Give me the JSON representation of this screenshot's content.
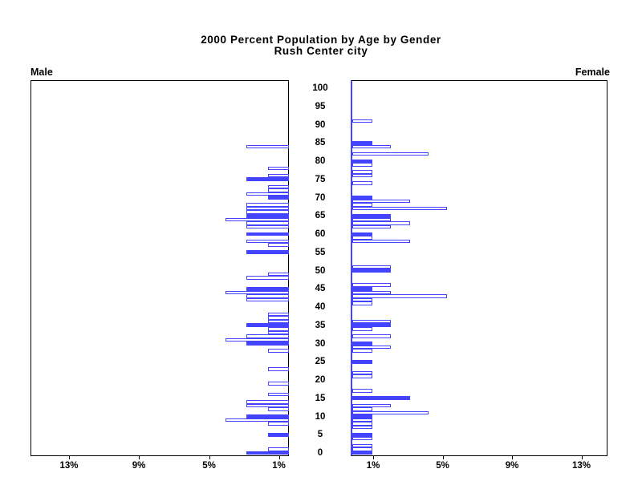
{
  "title": {
    "line1": "2000 Percent Population by Age by Gender",
    "line2": "Rush Center city"
  },
  "panel_labels": {
    "left": "Male",
    "right": "Female"
  },
  "chart_data": {
    "type": "bar",
    "subtype": "population-pyramid",
    "title": "2000 Percent Population by Age by Gender",
    "subtitle": "Rush Center city",
    "orientation": "horizontal, single-year-of-age bars; ages divisible by 5 drawn as solid filled bars, other ages as outlined bars",
    "legend_position": "none",
    "grid": "off",
    "colors": {
      "bar_blue": "#4444ff",
      "axis_black": "#000000",
      "background": "#ffffff"
    },
    "age_axis": {
      "min": 0,
      "max": 100,
      "tick_step": 5,
      "tick_labels": [
        "0",
        "5",
        "10",
        "15",
        "20",
        "25",
        "30",
        "35",
        "40",
        "45",
        "50",
        "55",
        "60",
        "65",
        "70",
        "75",
        "80",
        "85",
        "90",
        "95",
        "100"
      ]
    },
    "pct_axis": {
      "left_tick_labels": [
        "13%",
        "9%",
        "5%",
        "1%"
      ],
      "right_tick_labels": [
        "1%",
        "5%",
        "9%",
        "13%"
      ],
      "approx_range_pct": [
        0,
        15
      ]
    },
    "pct_per_person": {
      "male": 1.21,
      "female": 1.09
    },
    "male": [
      {
        "age": 84,
        "persons": 2,
        "pct": 2.42,
        "filled": false
      },
      {
        "age": 78,
        "persons": 1,
        "pct": 1.21,
        "filled": false
      },
      {
        "age": 76,
        "persons": 1,
        "pct": 1.21,
        "filled": false
      },
      {
        "age": 75,
        "persons": 2,
        "pct": 2.42,
        "filled": true
      },
      {
        "age": 73,
        "persons": 1,
        "pct": 1.21,
        "filled": false
      },
      {
        "age": 72,
        "persons": 1,
        "pct": 1.21,
        "filled": false
      },
      {
        "age": 71,
        "persons": 2,
        "pct": 2.42,
        "filled": false
      },
      {
        "age": 70,
        "persons": 1,
        "pct": 1.21,
        "filled": true
      },
      {
        "age": 68,
        "persons": 2,
        "pct": 2.42,
        "filled": false
      },
      {
        "age": 67,
        "persons": 2,
        "pct": 2.42,
        "filled": false
      },
      {
        "age": 66,
        "persons": 2,
        "pct": 2.42,
        "filled": false
      },
      {
        "age": 65,
        "persons": 2,
        "pct": 2.42,
        "filled": true
      },
      {
        "age": 64,
        "persons": 3,
        "pct": 3.63,
        "filled": false
      },
      {
        "age": 63,
        "persons": 2,
        "pct": 2.42,
        "filled": false
      },
      {
        "age": 62,
        "persons": 2,
        "pct": 2.42,
        "filled": false
      },
      {
        "age": 60,
        "persons": 2,
        "pct": 2.42,
        "filled": true
      },
      {
        "age": 58,
        "persons": 2,
        "pct": 2.42,
        "filled": false
      },
      {
        "age": 57,
        "persons": 1,
        "pct": 1.21,
        "filled": false
      },
      {
        "age": 55,
        "persons": 2,
        "pct": 2.42,
        "filled": true
      },
      {
        "age": 49,
        "persons": 1,
        "pct": 1.21,
        "filled": false
      },
      {
        "age": 48,
        "persons": 2,
        "pct": 2.42,
        "filled": false
      },
      {
        "age": 45,
        "persons": 2,
        "pct": 2.42,
        "filled": true
      },
      {
        "age": 44,
        "persons": 3,
        "pct": 3.63,
        "filled": false
      },
      {
        "age": 43,
        "persons": 2,
        "pct": 2.42,
        "filled": false
      },
      {
        "age": 42,
        "persons": 2,
        "pct": 2.42,
        "filled": false
      },
      {
        "age": 38,
        "persons": 1,
        "pct": 1.21,
        "filled": false
      },
      {
        "age": 37,
        "persons": 1,
        "pct": 1.21,
        "filled": false
      },
      {
        "age": 36,
        "persons": 1,
        "pct": 1.21,
        "filled": false
      },
      {
        "age": 35,
        "persons": 2,
        "pct": 2.42,
        "filled": true
      },
      {
        "age": 34,
        "persons": 1,
        "pct": 1.21,
        "filled": false
      },
      {
        "age": 33,
        "persons": 1,
        "pct": 1.21,
        "filled": false
      },
      {
        "age": 32,
        "persons": 2,
        "pct": 2.42,
        "filled": false
      },
      {
        "age": 31,
        "persons": 3,
        "pct": 3.63,
        "filled": false
      },
      {
        "age": 30,
        "persons": 2,
        "pct": 2.42,
        "filled": true
      },
      {
        "age": 28,
        "persons": 1,
        "pct": 1.21,
        "filled": false
      },
      {
        "age": 23,
        "persons": 1,
        "pct": 1.21,
        "filled": false
      },
      {
        "age": 19,
        "persons": 1,
        "pct": 1.21,
        "filled": false
      },
      {
        "age": 16,
        "persons": 1,
        "pct": 1.21,
        "filled": false
      },
      {
        "age": 14,
        "persons": 2,
        "pct": 2.42,
        "filled": false
      },
      {
        "age": 13,
        "persons": 2,
        "pct": 2.42,
        "filled": false
      },
      {
        "age": 12,
        "persons": 1,
        "pct": 1.21,
        "filled": false
      },
      {
        "age": 10,
        "persons": 2,
        "pct": 2.42,
        "filled": true
      },
      {
        "age": 9,
        "persons": 3,
        "pct": 3.63,
        "filled": false
      },
      {
        "age": 8,
        "persons": 1,
        "pct": 1.21,
        "filled": false
      },
      {
        "age": 5,
        "persons": 1,
        "pct": 1.21,
        "filled": true
      },
      {
        "age": 1,
        "persons": 1,
        "pct": 1.21,
        "filled": false
      },
      {
        "age": 0,
        "persons": 2,
        "pct": 2.42,
        "filled": true
      }
    ],
    "female": [
      {
        "age": 91,
        "persons": 1,
        "pct": 1.09,
        "filled": false
      },
      {
        "age": 85,
        "persons": 1,
        "pct": 1.09,
        "filled": true
      },
      {
        "age": 84,
        "persons": 2,
        "pct": 2.17,
        "filled": false
      },
      {
        "age": 82,
        "persons": 4,
        "pct": 4.35,
        "filled": false
      },
      {
        "age": 80,
        "persons": 1,
        "pct": 1.09,
        "filled": true
      },
      {
        "age": 79,
        "persons": 1,
        "pct": 1.09,
        "filled": false
      },
      {
        "age": 77,
        "persons": 1,
        "pct": 1.09,
        "filled": false
      },
      {
        "age": 76,
        "persons": 1,
        "pct": 1.09,
        "filled": false
      },
      {
        "age": 74,
        "persons": 1,
        "pct": 1.09,
        "filled": false
      },
      {
        "age": 70,
        "persons": 1,
        "pct": 1.09,
        "filled": true
      },
      {
        "age": 69,
        "persons": 3,
        "pct": 3.26,
        "filled": false
      },
      {
        "age": 68,
        "persons": 1,
        "pct": 1.09,
        "filled": false
      },
      {
        "age": 67,
        "persons": 5,
        "pct": 5.43,
        "filled": false
      },
      {
        "age": 65,
        "persons": 2,
        "pct": 2.17,
        "filled": true
      },
      {
        "age": 64,
        "persons": 2,
        "pct": 2.17,
        "filled": false
      },
      {
        "age": 63,
        "persons": 3,
        "pct": 3.26,
        "filled": false
      },
      {
        "age": 62,
        "persons": 2,
        "pct": 2.17,
        "filled": false
      },
      {
        "age": 60,
        "persons": 1,
        "pct": 1.09,
        "filled": true
      },
      {
        "age": 59,
        "persons": 1,
        "pct": 1.09,
        "filled": false
      },
      {
        "age": 58,
        "persons": 3,
        "pct": 3.26,
        "filled": false
      },
      {
        "age": 51,
        "persons": 2,
        "pct": 2.17,
        "filled": false
      },
      {
        "age": 50,
        "persons": 2,
        "pct": 2.17,
        "filled": true
      },
      {
        "age": 46,
        "persons": 2,
        "pct": 2.17,
        "filled": false
      },
      {
        "age": 45,
        "persons": 1,
        "pct": 1.09,
        "filled": true
      },
      {
        "age": 44,
        "persons": 2,
        "pct": 2.17,
        "filled": false
      },
      {
        "age": 43,
        "persons": 5,
        "pct": 5.43,
        "filled": false
      },
      {
        "age": 42,
        "persons": 1,
        "pct": 1.09,
        "filled": false
      },
      {
        "age": 41,
        "persons": 1,
        "pct": 1.09,
        "filled": false
      },
      {
        "age": 36,
        "persons": 2,
        "pct": 2.17,
        "filled": false
      },
      {
        "age": 35,
        "persons": 2,
        "pct": 2.17,
        "filled": true
      },
      {
        "age": 34,
        "persons": 1,
        "pct": 1.09,
        "filled": false
      },
      {
        "age": 32,
        "persons": 2,
        "pct": 2.17,
        "filled": false
      },
      {
        "age": 30,
        "persons": 1,
        "pct": 1.09,
        "filled": true
      },
      {
        "age": 29,
        "persons": 2,
        "pct": 2.17,
        "filled": false
      },
      {
        "age": 28,
        "persons": 1,
        "pct": 1.09,
        "filled": false
      },
      {
        "age": 25,
        "persons": 1,
        "pct": 1.09,
        "filled": true
      },
      {
        "age": 22,
        "persons": 1,
        "pct": 1.09,
        "filled": false
      },
      {
        "age": 21,
        "persons": 1,
        "pct": 1.09,
        "filled": false
      },
      {
        "age": 17,
        "persons": 1,
        "pct": 1.09,
        "filled": false
      },
      {
        "age": 15,
        "persons": 3,
        "pct": 3.26,
        "filled": true
      },
      {
        "age": 13,
        "persons": 2,
        "pct": 2.17,
        "filled": false
      },
      {
        "age": 12,
        "persons": 1,
        "pct": 1.09,
        "filled": false
      },
      {
        "age": 11,
        "persons": 4,
        "pct": 4.35,
        "filled": false
      },
      {
        "age": 10,
        "persons": 1,
        "pct": 1.09,
        "filled": true
      },
      {
        "age": 9,
        "persons": 1,
        "pct": 1.09,
        "filled": false
      },
      {
        "age": 8,
        "persons": 1,
        "pct": 1.09,
        "filled": false
      },
      {
        "age": 7,
        "persons": 1,
        "pct": 1.09,
        "filled": false
      },
      {
        "age": 5,
        "persons": 1,
        "pct": 1.09,
        "filled": true
      },
      {
        "age": 4,
        "persons": 1,
        "pct": 1.09,
        "filled": false
      },
      {
        "age": 2,
        "persons": 1,
        "pct": 1.09,
        "filled": false
      },
      {
        "age": 1,
        "persons": 1,
        "pct": 1.09,
        "filled": false
      },
      {
        "age": 0,
        "persons": 1,
        "pct": 1.09,
        "filled": true
      }
    ]
  }
}
